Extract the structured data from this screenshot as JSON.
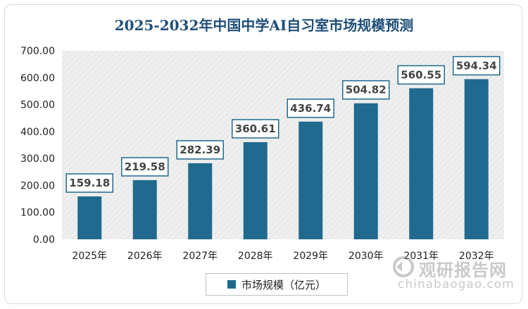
{
  "colors": {
    "bar": "#1f6a8e",
    "label_border": "#1f6a8e",
    "title": "#1f4e79",
    "plot_bg": "#eeeeee"
  },
  "watermark": {
    "cn": "观研报告网",
    "en": "chinabaogao.com"
  },
  "chart_data": {
    "type": "bar",
    "title": "2025-2032年中国中学AI自习室市场规模预测",
    "categories": [
      "2025年",
      "2026年",
      "2027年",
      "2028年",
      "2029年",
      "2030年",
      "2031年",
      "2032年"
    ],
    "series": [
      {
        "name": "市场规模（亿元）",
        "values": [
          159.18,
          219.58,
          282.39,
          360.61,
          436.74,
          504.82,
          560.55,
          594.34
        ]
      }
    ],
    "ylim": [
      0,
      700
    ],
    "yticks": [
      0,
      100,
      200,
      300,
      400,
      500,
      600,
      700
    ],
    "ytick_labels": [
      "0.00",
      "100.00",
      "200.00",
      "300.00",
      "400.00",
      "500.00",
      "600.00",
      "700.00"
    ],
    "data_labels": [
      "159.18",
      "219.58",
      "282.39",
      "360.61",
      "436.74",
      "504.82",
      "560.55",
      "594.34"
    ],
    "xlabel": "",
    "ylabel": "",
    "grid": false,
    "legend_position": "bottom"
  }
}
